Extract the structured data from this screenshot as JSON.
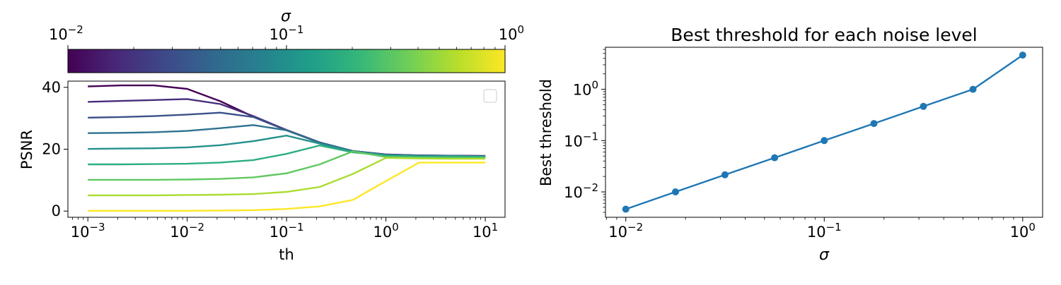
{
  "chart_data": [
    {
      "type": "line",
      "xlabel": "th",
      "ylabel": "PSNR",
      "x_scale": "log",
      "x": [
        0.001,
        0.0021544,
        0.0046416,
        0.01,
        0.021544,
        0.046416,
        0.1,
        0.21544,
        0.46416,
        1,
        2.1544,
        4.6416,
        10
      ],
      "x_ticks": [
        {
          "value": 0.001,
          "base": "10",
          "exp": "−3"
        },
        {
          "value": 0.01,
          "base": "10",
          "exp": "−2"
        },
        {
          "value": 0.1,
          "base": "10",
          "exp": "−1"
        },
        {
          "value": 1,
          "base": "10",
          "exp": "0"
        },
        {
          "value": 10,
          "base": "10",
          "exp": "1"
        }
      ],
      "xlim": [
        0.00063,
        15.8
      ],
      "y_ticks": [
        0,
        20,
        40
      ],
      "ylim": [
        -2,
        42
      ],
      "legend": "top-right, empty",
      "colormap": "viridis",
      "series": [
        {
          "sigma": 0.01,
          "values": [
            40.3,
            40.6,
            40.6,
            39.5,
            35.5,
            30.5,
            26.2,
            22.2,
            19.4,
            18.3,
            18.0,
            17.9,
            17.8
          ]
        },
        {
          "sigma": 0.0178,
          "values": [
            35.3,
            35.6,
            35.9,
            36.2,
            34.6,
            30.7,
            26.2,
            22.2,
            19.4,
            18.3,
            18.0,
            17.9,
            17.8
          ]
        },
        {
          "sigma": 0.0316,
          "values": [
            30.2,
            30.4,
            30.7,
            31.2,
            31.8,
            30.4,
            26.1,
            22.1,
            19.4,
            18.2,
            17.9,
            17.8,
            17.7
          ]
        },
        {
          "sigma": 0.0562,
          "values": [
            25.2,
            25.3,
            25.5,
            25.9,
            26.8,
            27.8,
            26.1,
            22.1,
            19.4,
            18.2,
            17.9,
            17.8,
            17.7
          ]
        },
        {
          "sigma": 0.1,
          "values": [
            20.1,
            20.2,
            20.3,
            20.6,
            21.3,
            22.6,
            24.4,
            21.8,
            19.2,
            18.1,
            17.8,
            17.7,
            17.6
          ]
        },
        {
          "sigma": 0.178,
          "values": [
            15.1,
            15.1,
            15.2,
            15.3,
            15.7,
            16.5,
            18.5,
            21.2,
            19.0,
            17.9,
            17.6,
            17.6,
            17.5
          ]
        },
        {
          "sigma": 0.316,
          "values": [
            10.1,
            10.1,
            10.1,
            10.2,
            10.4,
            10.9,
            12.2,
            15.1,
            19.3,
            17.5,
            17.3,
            17.2,
            17.2
          ]
        },
        {
          "sigma": 0.562,
          "values": [
            5.1,
            5.1,
            5.1,
            5.2,
            5.3,
            5.5,
            6.2,
            7.8,
            12.0,
            17.2,
            17.0,
            16.9,
            16.9
          ]
        },
        {
          "sigma": 1.0,
          "values": [
            0.1,
            0.1,
            0.1,
            0.1,
            0.2,
            0.3,
            0.7,
            1.5,
            3.6,
            9.7,
            15.7,
            15.7,
            15.7
          ]
        }
      ],
      "colorbar": {
        "label": "σ",
        "scale": "log",
        "range": [
          0.01,
          1
        ],
        "ticks": [
          {
            "value": 0.01,
            "base": "10",
            "exp": "−2"
          },
          {
            "value": 0.1,
            "base": "10",
            "exp": "−1"
          },
          {
            "value": 1,
            "base": "10",
            "exp": "0"
          }
        ]
      }
    },
    {
      "type": "line",
      "title": "Best threshold for each noise level",
      "xlabel": "σ",
      "ylabel": "Best threshold",
      "x_scale": "log",
      "y_scale": "log",
      "x": [
        0.01,
        0.0178,
        0.0316,
        0.0562,
        0.1,
        0.178,
        0.316,
        0.562,
        1.0
      ],
      "values": [
        0.0046,
        0.01,
        0.0215,
        0.0464,
        0.1,
        0.215,
        0.464,
        1.0,
        4.64
      ],
      "xlim": [
        0.0079,
        1.26
      ],
      "ylim": [
        0.0032,
        6.6
      ],
      "x_ticks": [
        {
          "value": 0.01,
          "base": "10",
          "exp": "−2"
        },
        {
          "value": 0.1,
          "base": "10",
          "exp": "−1"
        },
        {
          "value": 1,
          "base": "10",
          "exp": "0"
        }
      ],
      "y_ticks": [
        {
          "value": 0.01,
          "base": "10",
          "exp": "−2"
        },
        {
          "value": 0.1,
          "base": "10",
          "exp": "−1"
        },
        {
          "value": 1,
          "base": "10",
          "exp": "0"
        }
      ],
      "grid": false,
      "colors": {
        "line": "#1f77b4"
      }
    }
  ]
}
